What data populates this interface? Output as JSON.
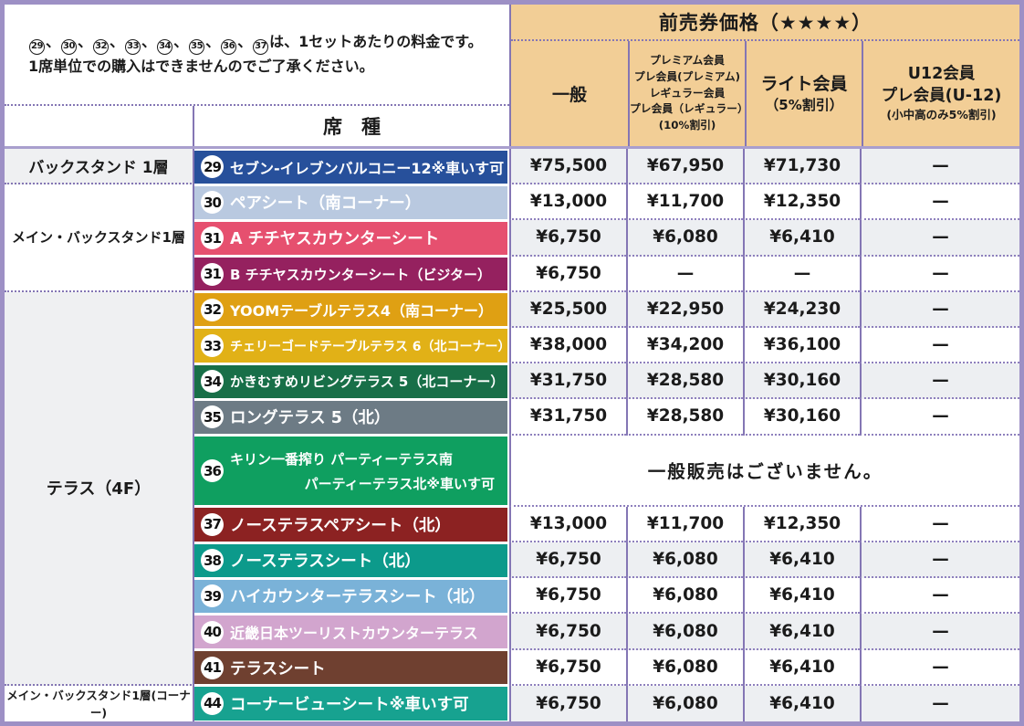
{
  "note": {
    "numbers": [
      "29",
      "30",
      "32",
      "33",
      "34",
      "35",
      "36",
      "37"
    ],
    "separator": "、",
    "line1_suffix": "は、1セットあたりの料金です。",
    "line2": "1席単位での購入はできませんのでご了承ください。"
  },
  "header": {
    "seat_type_label": "席　種",
    "title": "前売券価格（★★★★）",
    "columns": [
      {
        "lines": [
          "一般"
        ]
      },
      {
        "lines": [
          "プレミアム会員",
          "プレ会員(プレミアム)",
          "レギュラー会員",
          "プレ会員（レギュラー）",
          "(10%割引)"
        ]
      },
      {
        "lines": [
          "ライト会員",
          "（5%割引）"
        ]
      },
      {
        "lines": [
          "U12会員",
          "プレ会員(U-12)",
          "(小中高のみ5%割引)"
        ]
      }
    ]
  },
  "categories": [
    {
      "label": "バックスタンド 1層"
    },
    {
      "label": "メイン・バックスタンド1層"
    },
    {
      "label": "テラス（4F）"
    },
    {
      "label": "メイン・バックスタンド1層(コーナー)"
    }
  ],
  "no_sale_text": "一般販売はございません。",
  "rows": [
    {
      "num": "29",
      "name": "セブン-イレブンバルコニー12※車いす可",
      "color": "#27509b",
      "prices": [
        "¥75,500",
        "¥67,950",
        "¥71,730",
        "—"
      ]
    },
    {
      "num": "30",
      "name": "ペアシート（南コーナー）",
      "color": "#b9c9e0",
      "prices": [
        "¥13,000",
        "¥11,700",
        "¥12,350",
        "—"
      ]
    },
    {
      "num": "31",
      "name": "A チチヤスカウンターシート",
      "color": "#e6506f",
      "prices": [
        "¥6,750",
        "¥6,080",
        "¥6,410",
        "—"
      ]
    },
    {
      "num": "31",
      "name": "B チチヤスカウンターシート（ビジター）",
      "color": "#95215f",
      "prices": [
        "¥6,750",
        "—",
        "—",
        "—"
      ]
    },
    {
      "num": "32",
      "name": "YOOMテーブルテラス4（南コーナー）",
      "color": "#dfa013",
      "prices": [
        "¥25,500",
        "¥22,950",
        "¥24,230",
        "—"
      ]
    },
    {
      "num": "33",
      "name": "チェリーゴードテーブルテラス 6（北コーナー）",
      "color": "#e1b117",
      "prices": [
        "¥38,000",
        "¥34,200",
        "¥36,100",
        "—"
      ]
    },
    {
      "num": "34",
      "name": "かきむすめリビングテラス 5（北コーナー）",
      "color": "#186f48",
      "prices": [
        "¥31,750",
        "¥28,580",
        "¥30,160",
        "—"
      ]
    },
    {
      "num": "35",
      "name": "ロングテラス 5（北）",
      "color": "#6d7b85",
      "prices": [
        "¥31,750",
        "¥28,580",
        "¥30,160",
        "—"
      ]
    },
    {
      "num": "36",
      "name": "キリン一番搾り パーティーテラス南",
      "name2": "パーティーテラス北※車いす可",
      "color": "#0f9f60",
      "prices": []
    },
    {
      "num": "37",
      "name": "ノーステラスペアシート（北）",
      "color": "#8c2222",
      "prices": [
        "¥13,000",
        "¥11,700",
        "¥12,350",
        "—"
      ]
    },
    {
      "num": "38",
      "name": "ノーステラスシート（北）",
      "color": "#0c9a8b",
      "prices": [
        "¥6,750",
        "¥6,080",
        "¥6,410",
        "—"
      ]
    },
    {
      "num": "39",
      "name": "ハイカウンターテラスシート（北）",
      "color": "#7ab2d8",
      "prices": [
        "¥6,750",
        "¥6,080",
        "¥6,410",
        "—"
      ]
    },
    {
      "num": "40",
      "name": "近畿日本ツーリストカウンターテラス",
      "color": "#d2a5ce",
      "prices": [
        "¥6,750",
        "¥6,080",
        "¥6,410",
        "—"
      ]
    },
    {
      "num": "41",
      "name": "テラスシート",
      "color": "#6f4030",
      "prices": [
        "¥6,750",
        "¥6,080",
        "¥6,410",
        "—"
      ]
    },
    {
      "num": "44",
      "name": "コーナービューシート※車いす可",
      "color": "#17a290",
      "prices": [
        "¥6,750",
        "¥6,080",
        "¥6,410",
        "—"
      ]
    }
  ],
  "colors": {
    "outer_border": "#9d90c5",
    "inner_border": "#8476b4",
    "header_bg": "#f2ce96",
    "zebra_gray": "#edeff2",
    "category_gray": "#eff0f2"
  }
}
